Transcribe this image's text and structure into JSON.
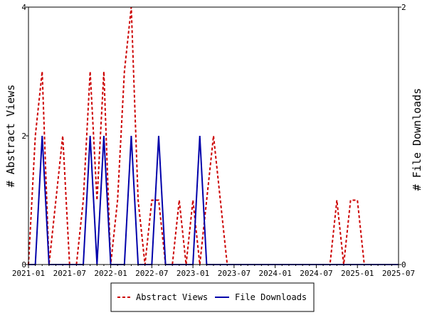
{
  "chart_data": {
    "type": "line",
    "title": "",
    "xlabel": "",
    "ylabel_left": "# Abstract Views",
    "ylabel_right": "# File Downloads",
    "x_ticks": [
      "2021-01",
      "2021-07",
      "2022-01",
      "2022-07",
      "2023-01",
      "2023-07",
      "2024-01",
      "2024-07",
      "2025-01",
      "2025-07"
    ],
    "y_left_ticks": [
      "0",
      "2",
      "4"
    ],
    "y_right_ticks": [
      "0",
      "2"
    ],
    "y_left_range": [
      0,
      4
    ],
    "y_right_range": [
      0,
      2
    ],
    "grid": false,
    "legend_position": "bottom",
    "categories": [
      "2021-01",
      "2021-02",
      "2021-03",
      "2021-04",
      "2021-05",
      "2021-06",
      "2021-07",
      "2021-08",
      "2021-09",
      "2021-10",
      "2021-11",
      "2021-12",
      "2022-01",
      "2022-02",
      "2022-03",
      "2022-04",
      "2022-05",
      "2022-06",
      "2022-07",
      "2022-08",
      "2022-09",
      "2022-10",
      "2022-11",
      "2022-12",
      "2023-01",
      "2023-02",
      "2023-03",
      "2023-04",
      "2023-05",
      "2023-06",
      "2023-07",
      "2023-08",
      "2023-09",
      "2023-10",
      "2023-11",
      "2023-12",
      "2024-01",
      "2024-02",
      "2024-03",
      "2024-04",
      "2024-05",
      "2024-06",
      "2024-07",
      "2024-08",
      "2024-09",
      "2024-10",
      "2024-11",
      "2024-12",
      "2025-01",
      "2025-02",
      "2025-03",
      "2025-04",
      "2025-05",
      "2025-06",
      "2025-07"
    ],
    "series": [
      {
        "name": "Abstract Views",
        "axis": "left",
        "color": "#cc0000",
        "dash": "dashed",
        "values": [
          0,
          2,
          3,
          0,
          1,
          2,
          0,
          0,
          1,
          3,
          1,
          3,
          0,
          1,
          3,
          4,
          1,
          0,
          1,
          1,
          0,
          0,
          1,
          0,
          1,
          0,
          1,
          2,
          1,
          0,
          0,
          0,
          0,
          0,
          0,
          0,
          0,
          0,
          0,
          0,
          0,
          0,
          0,
          0,
          0,
          1,
          0,
          1,
          1,
          0,
          0,
          0,
          0,
          0,
          0
        ]
      },
      {
        "name": "File Downloads",
        "axis": "right",
        "color": "#0000aa",
        "dash": "solid",
        "values": [
          0,
          0,
          1,
          0,
          0,
          0,
          0,
          0,
          0,
          1,
          0,
          1,
          0,
          0,
          0,
          1,
          0,
          0,
          0,
          1,
          0,
          0,
          0,
          0,
          0,
          1,
          0,
          0,
          0,
          0,
          0,
          0,
          0,
          0,
          0,
          0,
          0,
          0,
          0,
          0,
          0,
          0,
          0,
          0,
          0,
          0,
          0,
          0,
          0,
          0,
          0,
          0,
          0,
          0,
          0
        ]
      }
    ]
  }
}
